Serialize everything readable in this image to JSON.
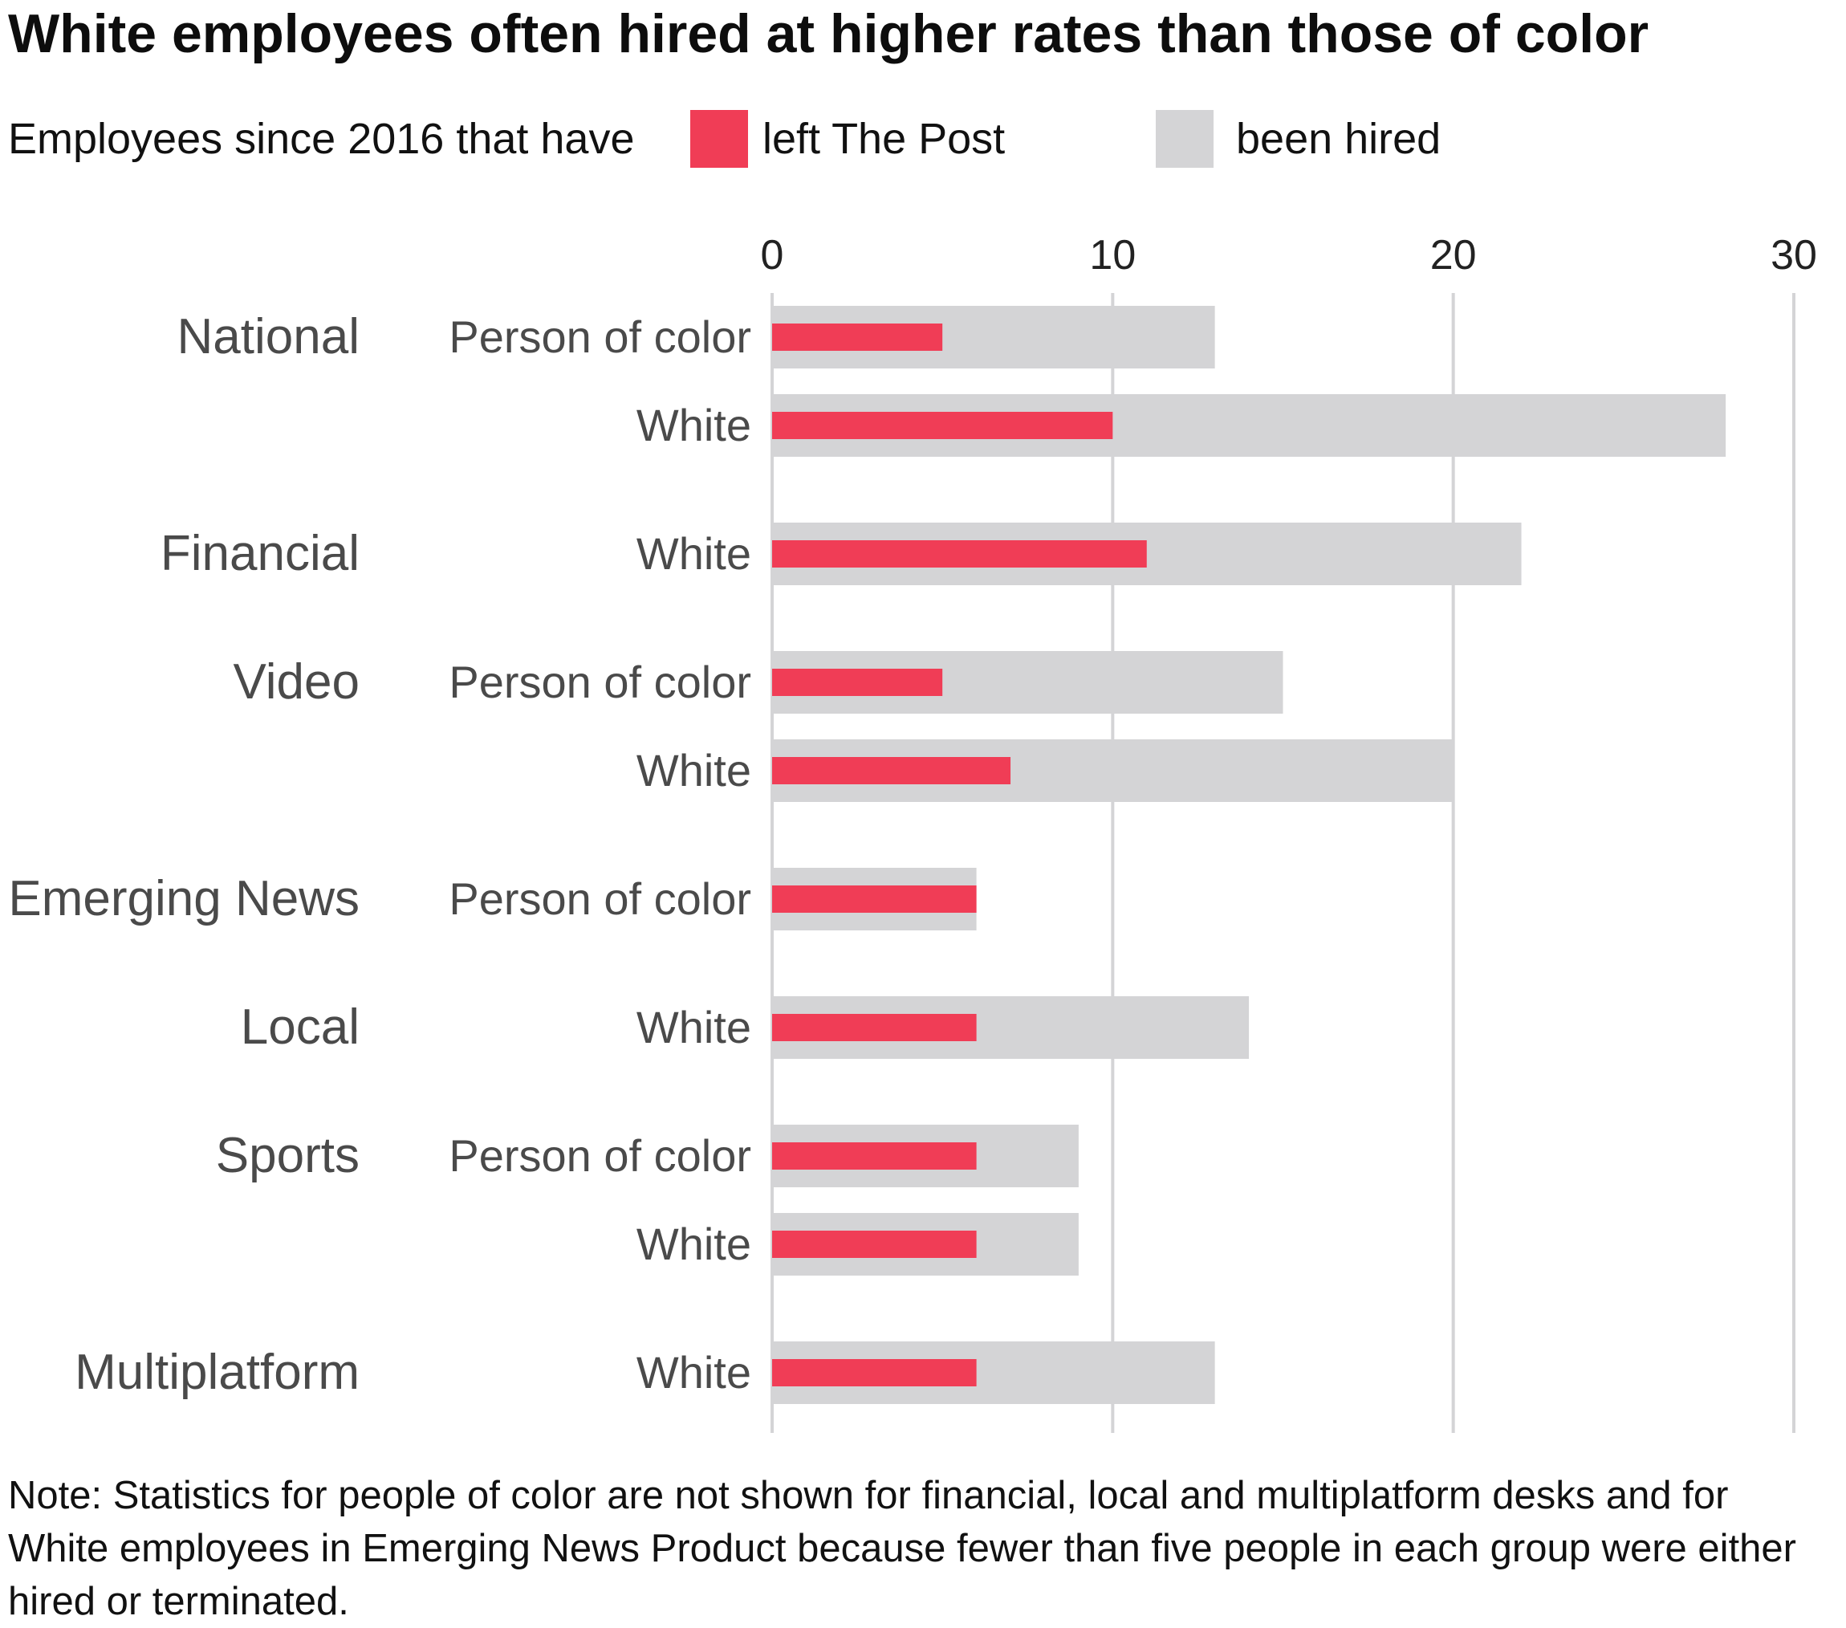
{
  "title": "White employees often hired at higher rates than those of color",
  "legend": {
    "intro": "Employees since 2016 that have",
    "items": [
      {
        "label": "left The Post",
        "color": "#f03d56"
      },
      {
        "label": "been hired",
        "color": "#d4d4d6"
      }
    ]
  },
  "note": "Note: Statistics for people of color are not shown for financial, local and multiplatform desks and for White employees in Emerging News Product because fewer than five people in each group were either hired or terminated.",
  "chart_data": {
    "type": "bar",
    "orientation": "horizontal",
    "xlim": [
      0,
      30
    ],
    "xticks": [
      0,
      10,
      20,
      30
    ],
    "grid": true,
    "legend_position": "top-left",
    "series": [
      {
        "name": "left The Post",
        "color": "#f03d56"
      },
      {
        "name": "been hired",
        "color": "#d4d4d6"
      }
    ],
    "groups": [
      {
        "name": "National",
        "rows": [
          {
            "label": "Person of color",
            "left": 5,
            "hired": 13
          },
          {
            "label": "White",
            "left": 10,
            "hired": 28
          }
        ]
      },
      {
        "name": "Financial",
        "rows": [
          {
            "label": "White",
            "left": 11,
            "hired": 22
          }
        ]
      },
      {
        "name": "Video",
        "rows": [
          {
            "label": "Person of color",
            "left": 5,
            "hired": 15
          },
          {
            "label": "White",
            "left": 7,
            "hired": 20
          }
        ]
      },
      {
        "name": "Emerging News",
        "rows": [
          {
            "label": "Person of color",
            "left": 6,
            "hired": 6
          }
        ]
      },
      {
        "name": "Local",
        "rows": [
          {
            "label": "White",
            "left": 6,
            "hired": 14
          }
        ]
      },
      {
        "name": "Sports",
        "rows": [
          {
            "label": "Person of color",
            "left": 6,
            "hired": 9
          },
          {
            "label": "White",
            "left": 6,
            "hired": 9
          }
        ]
      },
      {
        "name": "Multiplatform",
        "rows": [
          {
            "label": "White",
            "left": 6,
            "hired": 13
          }
        ]
      }
    ]
  }
}
